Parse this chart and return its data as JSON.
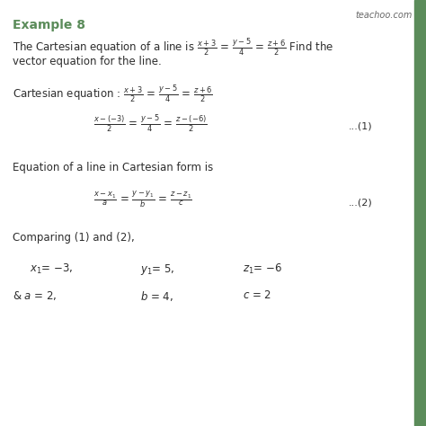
{
  "title": "Example 8",
  "watermark": "teachoo.com",
  "bg_color": "#ffffff",
  "green_color": "#5b8c5a",
  "dark_color": "#2d2d2d",
  "gray_color": "#666666",
  "eq1_num": "...(1)",
  "eq2_num": "...(2)",
  "sidebar_color": "#5b8c5a"
}
